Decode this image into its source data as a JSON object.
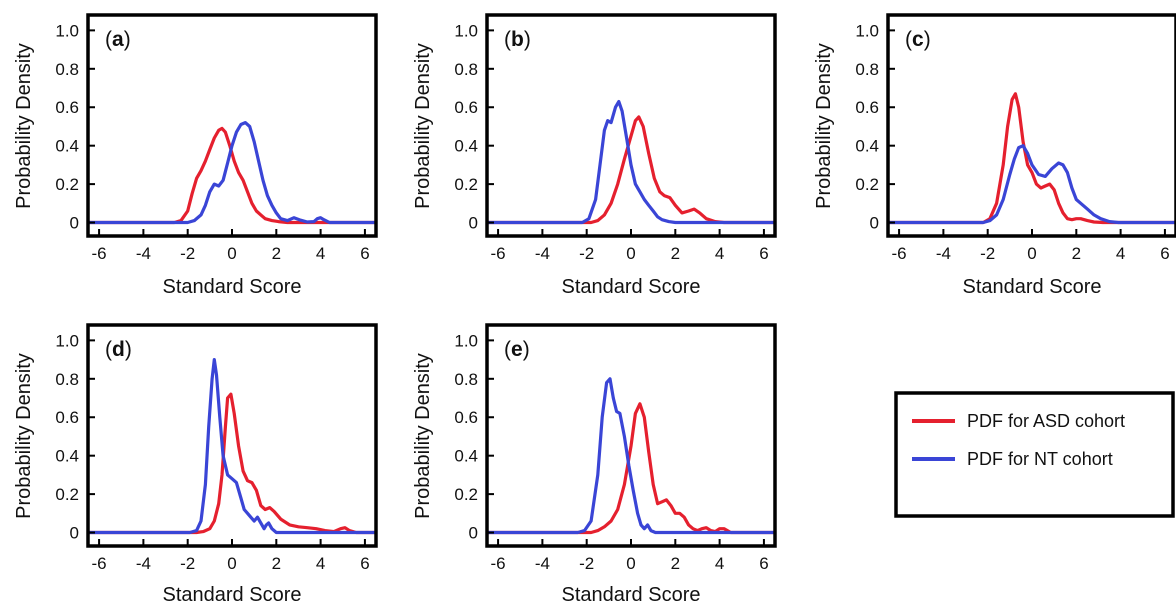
{
  "colors": {
    "asd": "#e5202e",
    "nt": "#3a45d6",
    "axis": "#000000"
  },
  "legend": {
    "entries": [
      {
        "series": "asd",
        "label": "PDF for ASD cohort"
      },
      {
        "series": "nt",
        "label": "PDF for NT cohort"
      }
    ]
  },
  "chart_data": [
    {
      "type": "line",
      "panel": "a",
      "panel_label": {
        "open": "(",
        "letter": "a",
        "close": ")"
      },
      "xlabel": "Standard Score",
      "ylabel": "Probability Density",
      "xlim": [
        -6.5,
        6.5
      ],
      "ylim": [
        -0.07,
        1.08
      ],
      "xticks": [
        -6,
        -4,
        -2,
        0,
        2,
        4,
        6
      ],
      "yticks": [
        0,
        0.2,
        0.4,
        0.6,
        0.8,
        1.0
      ],
      "ytick_labels": [
        "0",
        "0.2",
        "0.4",
        "0.6",
        "0.8",
        "1.0"
      ],
      "grid": false,
      "series": [
        {
          "key": "asd",
          "x": [
            -6.5,
            -2.6,
            -2.3,
            -2.0,
            -1.8,
            -1.6,
            -1.4,
            -1.2,
            -1.0,
            -0.8,
            -0.6,
            -0.45,
            -0.3,
            -0.1,
            0.1,
            0.3,
            0.5,
            0.7,
            0.9,
            1.1,
            1.3,
            1.5,
            1.8,
            2.1,
            2.5,
            3.0,
            6.5
          ],
          "y": [
            0,
            0,
            0.01,
            0.06,
            0.15,
            0.23,
            0.27,
            0.32,
            0.38,
            0.44,
            0.48,
            0.49,
            0.47,
            0.4,
            0.32,
            0.26,
            0.22,
            0.16,
            0.1,
            0.06,
            0.04,
            0.02,
            0.01,
            0.005,
            0,
            0,
            0
          ]
        },
        {
          "key": "nt",
          "x": [
            -6.5,
            -2.0,
            -1.7,
            -1.4,
            -1.2,
            -1.0,
            -0.8,
            -0.6,
            -0.4,
            -0.2,
            0.0,
            0.2,
            0.4,
            0.6,
            0.8,
            1.0,
            1.2,
            1.4,
            1.6,
            1.8,
            2.0,
            2.2,
            2.5,
            2.8,
            3.1,
            3.4,
            3.7,
            3.85,
            4.0,
            4.15,
            4.4,
            6.5
          ],
          "y": [
            0,
            0,
            0.01,
            0.04,
            0.09,
            0.16,
            0.2,
            0.19,
            0.22,
            0.31,
            0.4,
            0.47,
            0.51,
            0.52,
            0.5,
            0.42,
            0.32,
            0.22,
            0.14,
            0.09,
            0.05,
            0.02,
            0.01,
            0.025,
            0.012,
            0.003,
            0.005,
            0.02,
            0.025,
            0.015,
            0,
            0
          ]
        }
      ]
    },
    {
      "type": "line",
      "panel": "b",
      "panel_label": {
        "open": "(",
        "letter": "b",
        "close": ")"
      },
      "xlabel": "Standard Score",
      "ylabel": "Probability Density",
      "xlim": [
        -6.5,
        6.5
      ],
      "ylim": [
        -0.07,
        1.08
      ],
      "xticks": [
        -6,
        -4,
        -2,
        0,
        2,
        4,
        6
      ],
      "yticks": [
        0,
        0.2,
        0.4,
        0.6,
        0.8,
        1.0
      ],
      "ytick_labels": [
        "0",
        "0.2",
        "0.4",
        "0.6",
        "0.8",
        "1.0"
      ],
      "grid": false,
      "series": [
        {
          "key": "asd",
          "x": [
            -6.5,
            -1.8,
            -1.5,
            -1.2,
            -0.9,
            -0.6,
            -0.3,
            0.0,
            0.2,
            0.35,
            0.55,
            0.8,
            1.05,
            1.3,
            1.5,
            1.75,
            2.0,
            2.3,
            2.6,
            2.85,
            3.1,
            3.4,
            3.8,
            4.2,
            6.5
          ],
          "y": [
            0,
            0,
            0.01,
            0.04,
            0.1,
            0.2,
            0.33,
            0.45,
            0.53,
            0.55,
            0.5,
            0.36,
            0.23,
            0.16,
            0.14,
            0.13,
            0.09,
            0.05,
            0.06,
            0.07,
            0.05,
            0.02,
            0.005,
            0,
            0
          ]
        },
        {
          "key": "nt",
          "x": [
            -6.5,
            -2.2,
            -1.9,
            -1.6,
            -1.4,
            -1.2,
            -1.05,
            -0.9,
            -0.7,
            -0.55,
            -0.4,
            -0.2,
            0.0,
            0.2,
            0.4,
            0.6,
            0.8,
            1.0,
            1.2,
            1.4,
            1.7,
            2.0,
            6.5
          ],
          "y": [
            0,
            0,
            0.02,
            0.12,
            0.3,
            0.48,
            0.53,
            0.52,
            0.6,
            0.63,
            0.58,
            0.44,
            0.3,
            0.2,
            0.16,
            0.12,
            0.09,
            0.06,
            0.03,
            0.015,
            0.005,
            0,
            0
          ]
        }
      ]
    },
    {
      "type": "line",
      "panel": "c",
      "panel_label": {
        "open": "(",
        "letter": "c",
        "close": ")"
      },
      "xlabel": "Standard Score",
      "ylabel": "Probability Density",
      "xlim": [
        -6.5,
        6.5
      ],
      "ylim": [
        -0.07,
        1.08
      ],
      "xticks": [
        -6,
        -4,
        -2,
        0,
        2,
        4,
        6
      ],
      "yticks": [
        0,
        0.2,
        0.4,
        0.6,
        0.8,
        1.0
      ],
      "ytick_labels": [
        "0",
        "0.2",
        "0.4",
        "0.6",
        "0.8",
        "1.0"
      ],
      "grid": false,
      "series": [
        {
          "key": "asd",
          "x": [
            -6.5,
            -2.2,
            -1.9,
            -1.6,
            -1.3,
            -1.1,
            -0.9,
            -0.75,
            -0.6,
            -0.4,
            -0.2,
            0.0,
            0.2,
            0.4,
            0.6,
            0.8,
            1.0,
            1.2,
            1.4,
            1.6,
            1.8,
            2.0,
            2.2,
            2.5,
            2.8,
            3.2,
            6.5
          ],
          "y": [
            0,
            0,
            0.02,
            0.1,
            0.3,
            0.5,
            0.64,
            0.67,
            0.6,
            0.42,
            0.3,
            0.26,
            0.2,
            0.18,
            0.19,
            0.2,
            0.17,
            0.1,
            0.05,
            0.02,
            0.015,
            0.02,
            0.02,
            0.01,
            0.003,
            0,
            0
          ]
        },
        {
          "key": "nt",
          "x": [
            -6.5,
            -2.2,
            -1.9,
            -1.6,
            -1.3,
            -1.0,
            -0.8,
            -0.6,
            -0.4,
            -0.2,
            0.0,
            0.3,
            0.6,
            0.9,
            1.2,
            1.4,
            1.6,
            1.8,
            2.0,
            2.2,
            2.5,
            2.8,
            3.1,
            3.5,
            3.9,
            6.5
          ],
          "y": [
            0,
            0,
            0.01,
            0.04,
            0.12,
            0.25,
            0.33,
            0.39,
            0.4,
            0.36,
            0.3,
            0.25,
            0.24,
            0.28,
            0.31,
            0.3,
            0.26,
            0.18,
            0.12,
            0.1,
            0.07,
            0.04,
            0.02,
            0.005,
            0,
            0
          ]
        }
      ]
    },
    {
      "type": "line",
      "panel": "d",
      "panel_label": {
        "open": "(",
        "letter": "d",
        "close": ")"
      },
      "xlabel": "Standard Score",
      "ylabel": "Probability Density",
      "xlim": [
        -6.5,
        6.5
      ],
      "ylim": [
        -0.07,
        1.08
      ],
      "xticks": [
        -6,
        -4,
        -2,
        0,
        2,
        4,
        6
      ],
      "yticks": [
        0,
        0.2,
        0.4,
        0.6,
        0.8,
        1.0
      ],
      "ytick_labels": [
        "0",
        "0.2",
        "0.4",
        "0.6",
        "0.8",
        "1.0"
      ],
      "grid": false,
      "series": [
        {
          "key": "asd",
          "x": [
            -6.5,
            -1.6,
            -1.3,
            -1.0,
            -0.8,
            -0.6,
            -0.45,
            -0.3,
            -0.2,
            -0.05,
            0.1,
            0.3,
            0.5,
            0.7,
            0.9,
            1.1,
            1.3,
            1.5,
            1.7,
            1.9,
            2.2,
            2.6,
            3.0,
            3.4,
            3.8,
            4.2,
            4.6,
            4.9,
            5.1,
            5.3,
            5.6,
            6.5
          ],
          "y": [
            0,
            0,
            0.005,
            0.02,
            0.06,
            0.15,
            0.3,
            0.55,
            0.7,
            0.72,
            0.62,
            0.45,
            0.32,
            0.27,
            0.26,
            0.22,
            0.14,
            0.12,
            0.13,
            0.11,
            0.07,
            0.04,
            0.03,
            0.025,
            0.02,
            0.01,
            0.005,
            0.02,
            0.025,
            0.01,
            0,
            0
          ]
        },
        {
          "key": "nt",
          "x": [
            -6.5,
            -1.9,
            -1.6,
            -1.4,
            -1.2,
            -1.05,
            -0.9,
            -0.8,
            -0.7,
            -0.55,
            -0.4,
            -0.2,
            0.0,
            0.2,
            0.4,
            0.55,
            0.7,
            0.85,
            1.0,
            1.15,
            1.3,
            1.45,
            1.55,
            1.65,
            1.8,
            2.0,
            6.5
          ],
          "y": [
            0,
            0,
            0.01,
            0.06,
            0.25,
            0.55,
            0.8,
            0.9,
            0.82,
            0.6,
            0.4,
            0.3,
            0.28,
            0.26,
            0.18,
            0.12,
            0.1,
            0.08,
            0.06,
            0.08,
            0.05,
            0.02,
            0.04,
            0.05,
            0.02,
            0,
            0
          ]
        }
      ]
    },
    {
      "type": "line",
      "panel": "e",
      "panel_label": {
        "open": "(",
        "letter": "e",
        "close": ")"
      },
      "xlabel": "Standard Score",
      "ylabel": "Probability Density",
      "xlim": [
        -6.5,
        6.5
      ],
      "ylim": [
        -0.07,
        1.08
      ],
      "xticks": [
        -6,
        -4,
        -2,
        0,
        2,
        4,
        6
      ],
      "yticks": [
        0,
        0.2,
        0.4,
        0.6,
        0.8,
        1.0
      ],
      "ytick_labels": [
        "0",
        "0.2",
        "0.4",
        "0.6",
        "0.8",
        "1.0"
      ],
      "grid": false,
      "series": [
        {
          "key": "asd",
          "x": [
            -6.5,
            -1.8,
            -1.5,
            -1.2,
            -0.9,
            -0.6,
            -0.3,
            0.0,
            0.2,
            0.4,
            0.6,
            0.8,
            1.0,
            1.2,
            1.4,
            1.6,
            1.8,
            2.0,
            2.2,
            2.4,
            2.6,
            2.8,
            3.0,
            3.2,
            3.4,
            3.6,
            3.8,
            4.0,
            4.2,
            4.5,
            6.5
          ],
          "y": [
            0,
            0,
            0.01,
            0.03,
            0.06,
            0.12,
            0.25,
            0.45,
            0.62,
            0.67,
            0.6,
            0.42,
            0.25,
            0.15,
            0.16,
            0.17,
            0.14,
            0.1,
            0.1,
            0.08,
            0.04,
            0.02,
            0.01,
            0.02,
            0.025,
            0.01,
            0.005,
            0.02,
            0.02,
            0,
            0
          ]
        },
        {
          "key": "nt",
          "x": [
            -6.5,
            -2.4,
            -2.1,
            -1.8,
            -1.5,
            -1.3,
            -1.1,
            -0.95,
            -0.8,
            -0.65,
            -0.5,
            -0.3,
            -0.1,
            0.1,
            0.3,
            0.45,
            0.6,
            0.75,
            0.9,
            1.1,
            6.5
          ],
          "y": [
            0,
            0,
            0.01,
            0.06,
            0.3,
            0.6,
            0.78,
            0.8,
            0.7,
            0.63,
            0.62,
            0.5,
            0.35,
            0.22,
            0.1,
            0.04,
            0.02,
            0.04,
            0.01,
            0,
            0
          ]
        }
      ]
    }
  ]
}
